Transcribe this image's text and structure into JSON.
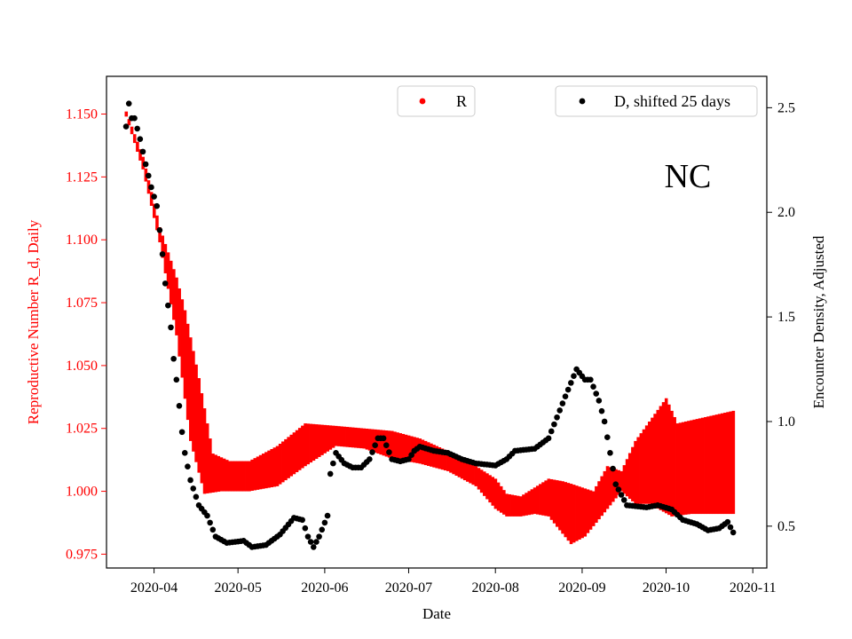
{
  "chart_data": {
    "type": "scatter",
    "annotation": "NC",
    "xlabel": "Date",
    "ylabel_left": "Reproductive Number R_d, Daily",
    "ylabel_right": "Encounter Density, Adjusted",
    "x_ticks": [
      "2020-04",
      "2020-05",
      "2020-06",
      "2020-07",
      "2020-08",
      "2020-09",
      "2020-10",
      "2020-11"
    ],
    "xlim": [
      "2020-03-15",
      "2020-11-06"
    ],
    "ylim_left": [
      0.9695,
      1.165
    ],
    "ylim_right": [
      0.3,
      2.65
    ],
    "y_ticks_left": [
      "0.975",
      "1.000",
      "1.025",
      "1.050",
      "1.075",
      "1.100",
      "1.125",
      "1.150"
    ],
    "y_ticks_right": [
      "0.5",
      "1.0",
      "1.5",
      "2.0",
      "2.5"
    ],
    "left_axis_color": "#ff0000",
    "series": [
      {
        "name": "R",
        "axis": "left",
        "color": "#ff0000",
        "style": "range",
        "start": "2020-03-22",
        "end": "2020-10-25",
        "lower_anchors": [
          [
            "2020-03-22",
            1.149
          ],
          [
            "2020-03-28",
            1.128
          ],
          [
            "2020-04-03",
            1.099
          ],
          [
            "2020-04-09",
            1.062
          ],
          [
            "2020-04-14",
            1.02
          ],
          [
            "2020-04-19",
            0.999
          ],
          [
            "2020-04-25",
            1.0
          ],
          [
            "2020-05-05",
            1.0
          ],
          [
            "2020-05-15",
            1.002
          ],
          [
            "2020-05-25",
            1.01
          ],
          [
            "2020-06-05",
            1.018
          ],
          [
            "2020-06-15",
            1.017
          ],
          [
            "2020-06-25",
            1.013
          ],
          [
            "2020-07-05",
            1.011
          ],
          [
            "2020-07-15",
            1.008
          ],
          [
            "2020-07-25",
            1.002
          ],
          [
            "2020-08-01",
            0.993
          ],
          [
            "2020-08-05",
            0.99
          ],
          [
            "2020-08-10",
            0.99
          ],
          [
            "2020-08-15",
            0.991
          ],
          [
            "2020-08-20",
            0.99
          ],
          [
            "2020-08-28",
            0.979
          ],
          [
            "2020-09-02",
            0.982
          ],
          [
            "2020-09-10",
            0.993
          ],
          [
            "2020-09-15",
            1.0
          ],
          [
            "2020-09-20",
            0.995
          ],
          [
            "2020-09-25",
            0.995
          ],
          [
            "2020-10-03",
            0.99
          ],
          [
            "2020-10-10",
            0.991
          ],
          [
            "2020-10-25",
            0.991
          ]
        ],
        "upper_anchors": [
          [
            "2020-03-22",
            1.151
          ],
          [
            "2020-03-28",
            1.133
          ],
          [
            "2020-04-03",
            1.105
          ],
          [
            "2020-04-09",
            1.085
          ],
          [
            "2020-04-12",
            1.072
          ],
          [
            "2020-04-17",
            1.045
          ],
          [
            "2020-04-22",
            1.015
          ],
          [
            "2020-04-28",
            1.012
          ],
          [
            "2020-05-05",
            1.012
          ],
          [
            "2020-05-15",
            1.018
          ],
          [
            "2020-05-25",
            1.027
          ],
          [
            "2020-06-05",
            1.026
          ],
          [
            "2020-06-15",
            1.025
          ],
          [
            "2020-06-25",
            1.024
          ],
          [
            "2020-07-05",
            1.021
          ],
          [
            "2020-07-15",
            1.016
          ],
          [
            "2020-07-25",
            1.01
          ],
          [
            "2020-08-01",
            1.005
          ],
          [
            "2020-08-05",
            0.999
          ],
          [
            "2020-08-10",
            0.998
          ],
          [
            "2020-08-20",
            1.005
          ],
          [
            "2020-08-25",
            1.004
          ],
          [
            "2020-08-28",
            1.003
          ],
          [
            "2020-09-05",
            1.0
          ],
          [
            "2020-09-10",
            1.01
          ],
          [
            "2020-09-15",
            1.008
          ],
          [
            "2020-09-20",
            1.02
          ],
          [
            "2020-10-01",
            1.037
          ],
          [
            "2020-10-05",
            1.027
          ],
          [
            "2020-10-25",
            1.032
          ]
        ]
      },
      {
        "name": "D, shifted 25 days",
        "axis": "right",
        "color": "#000000",
        "style": "points",
        "anchors": [
          [
            "2020-03-22",
            2.41
          ],
          [
            "2020-03-23",
            2.52
          ],
          [
            "2020-03-24",
            2.45
          ],
          [
            "2020-03-25",
            2.45
          ],
          [
            "2020-03-26",
            2.4
          ],
          [
            "2020-03-27",
            2.35
          ],
          [
            "2020-03-29",
            2.23
          ],
          [
            "2020-03-31",
            2.12
          ],
          [
            "2020-04-02",
            2.03
          ],
          [
            "2020-04-04",
            1.8
          ],
          [
            "2020-04-05",
            1.66
          ],
          [
            "2020-04-07",
            1.45
          ],
          [
            "2020-04-08",
            1.3
          ],
          [
            "2020-04-09",
            1.2
          ],
          [
            "2020-04-11",
            0.95
          ],
          [
            "2020-04-12",
            0.85
          ],
          [
            "2020-04-14",
            0.72
          ],
          [
            "2020-04-17",
            0.6
          ],
          [
            "2020-04-20",
            0.55
          ],
          [
            "2020-04-23",
            0.45
          ],
          [
            "2020-04-27",
            0.42
          ],
          [
            "2020-05-03",
            0.43
          ],
          [
            "2020-05-06",
            0.4
          ],
          [
            "2020-05-11",
            0.41
          ],
          [
            "2020-05-16",
            0.46
          ],
          [
            "2020-05-21",
            0.54
          ],
          [
            "2020-05-24",
            0.53
          ],
          [
            "2020-05-26",
            0.45
          ],
          [
            "2020-05-28",
            0.4
          ],
          [
            "2020-05-30",
            0.45
          ],
          [
            "2020-06-02",
            0.55
          ],
          [
            "2020-06-03",
            0.75
          ],
          [
            "2020-06-05",
            0.85
          ],
          [
            "2020-06-08",
            0.8
          ],
          [
            "2020-06-11",
            0.78
          ],
          [
            "2020-06-14",
            0.78
          ],
          [
            "2020-06-17",
            0.82
          ],
          [
            "2020-06-20",
            0.92
          ],
          [
            "2020-06-22",
            0.92
          ],
          [
            "2020-06-25",
            0.82
          ],
          [
            "2020-06-28",
            0.81
          ],
          [
            "2020-07-01",
            0.82
          ],
          [
            "2020-07-03",
            0.86
          ],
          [
            "2020-07-05",
            0.88
          ],
          [
            "2020-07-10",
            0.86
          ],
          [
            "2020-07-15",
            0.85
          ],
          [
            "2020-07-20",
            0.82
          ],
          [
            "2020-07-25",
            0.8
          ],
          [
            "2020-08-01",
            0.79
          ],
          [
            "2020-08-05",
            0.82
          ],
          [
            "2020-08-08",
            0.86
          ],
          [
            "2020-08-15",
            0.87
          ],
          [
            "2020-08-20",
            0.92
          ],
          [
            "2020-08-23",
            1.02
          ],
          [
            "2020-08-26",
            1.12
          ],
          [
            "2020-08-30",
            1.25
          ],
          [
            "2020-09-02",
            1.2
          ],
          [
            "2020-09-04",
            1.2
          ],
          [
            "2020-09-07",
            1.1
          ],
          [
            "2020-09-09",
            1.0
          ],
          [
            "2020-09-11",
            0.85
          ],
          [
            "2020-09-13",
            0.7
          ],
          [
            "2020-09-17",
            0.6
          ],
          [
            "2020-09-24",
            0.59
          ],
          [
            "2020-09-28",
            0.6
          ],
          [
            "2020-10-03",
            0.58
          ],
          [
            "2020-10-07",
            0.53
          ],
          [
            "2020-10-12",
            0.51
          ],
          [
            "2020-10-16",
            0.48
          ],
          [
            "2020-10-20",
            0.49
          ],
          [
            "2020-10-23",
            0.52
          ],
          [
            "2020-10-25",
            0.47
          ]
        ]
      }
    ],
    "legend_left": {
      "label": "R",
      "color": "#ff0000",
      "placement": "top-center"
    },
    "legend_right": {
      "label": "D, shifted 25 days",
      "color": "#000000",
      "placement": "top-right"
    },
    "grid": false
  }
}
